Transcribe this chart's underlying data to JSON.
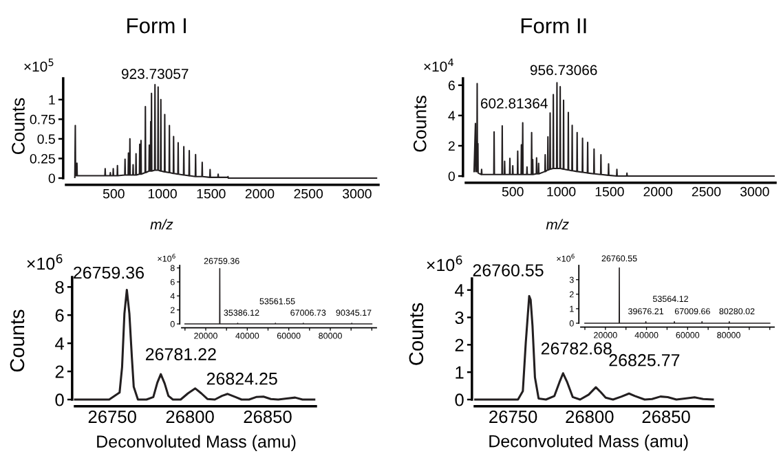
{
  "chart_data": [
    {
      "type": "line",
      "title": "Form I",
      "xlabel": "m/z",
      "ylabel": "Counts",
      "xlim": [
        10,
        3220
      ],
      "ylim": [
        0,
        1.27
      ],
      "xticks": [
        500,
        1000,
        1500,
        2000,
        2500,
        3000
      ],
      "yticks": [
        0,
        0.25,
        0.5,
        0.75,
        1
      ],
      "annotations": [
        "×10$^{5}$",
        {
          "text": "923.73057",
          "x": 923.73,
          "y": 1.19
        }
      ],
      "x": [
        100,
        105,
        108,
        119,
        122,
        125,
        409,
        412,
        415,
        462,
        465,
        468,
        492,
        495,
        498,
        535,
        538,
        541,
        613,
        616,
        619,
        648,
        651,
        654,
        663,
        666,
        669,
        696,
        699,
        702,
        726,
        729,
        732,
        764,
        767,
        770,
        777,
        780,
        783,
        822,
        825,
        828,
        862,
        865,
        868,
        877,
        880,
        883,
        885,
        888,
        891,
        920,
        923.73,
        927,
        953,
        956,
        959,
        981,
        984,
        987,
        1021,
        1024,
        1027,
        1069,
        1072,
        1075,
        1112,
        1115,
        1118,
        1159,
        1162,
        1165,
        1217,
        1220,
        1223,
        1273,
        1276,
        1279,
        1338,
        1341,
        1344,
        1406,
        1409,
        1412,
        1487,
        1490,
        1493,
        1570,
        1573,
        1576,
        1671,
        1674,
        1677,
        3200
      ],
      "series": [
        {
          "color": "#231f20",
          "values": [
            0.01,
            0.67,
            0.03,
            0.03,
            0.19,
            0.03,
            0.03,
            0.12,
            0.03,
            0.03,
            0.07,
            0.03,
            0.03,
            0.12,
            0.03,
            0.03,
            0.16,
            0.03,
            0.04,
            0.24,
            0.04,
            0.04,
            0.32,
            0.04,
            0.04,
            0.5,
            0.04,
            0.04,
            0.17,
            0.04,
            0.04,
            0.31,
            0.04,
            0.05,
            0.43,
            0.05,
            0.05,
            0.48,
            0.05,
            0.07,
            0.91,
            0.07,
            0.09,
            0.42,
            0.09,
            0.09,
            0.72,
            0.09,
            0.09,
            1.08,
            0.09,
            0.1,
            1.19,
            0.1,
            0.1,
            1.16,
            0.1,
            0.09,
            1.0,
            0.09,
            0.08,
            0.81,
            0.08,
            0.07,
            0.67,
            0.07,
            0.06,
            0.53,
            0.06,
            0.05,
            0.45,
            0.05,
            0.04,
            0.4,
            0.04,
            0.03,
            0.35,
            0.03,
            0.02,
            0.3,
            0.02,
            0.02,
            0.2,
            0.02,
            0.01,
            0.11,
            0.01,
            0.01,
            0.05,
            0.01,
            0.01,
            0.02,
            0,
            0
          ]
        }
      ]
    },
    {
      "type": "line",
      "title": "Form II",
      "xlabel": "m/z",
      "ylabel": "Counts",
      "xlim": [
        15,
        3215
      ],
      "ylim": [
        0,
        6.45
      ],
      "xticks": [
        500,
        1000,
        1500,
        2000,
        2500,
        3000
      ],
      "yticks": [
        0,
        2,
        4,
        6
      ],
      "annotations": [
        "×10$^{4}$",
        {
          "text": "956.73066",
          "x": 956.73,
          "y": 6.16
        },
        {
          "text": "602.81364",
          "x": 602.81,
          "y": 3.52
        }
      ],
      "x": [
        100,
        114,
        117,
        129,
        132,
        135,
        138,
        140,
        142,
        175,
        178,
        181,
        304,
        307,
        310,
        388,
        391,
        394,
        413,
        416,
        419,
        467,
        470,
        473,
        497,
        500,
        503,
        548,
        551,
        554,
        586,
        589,
        592,
        599,
        602.81,
        606,
        644,
        647,
        650,
        692,
        695,
        698,
        703,
        706,
        709,
        743,
        746,
        749,
        764,
        767,
        770,
        832,
        835,
        838,
        860,
        863,
        866,
        883,
        886,
        889,
        916,
        919,
        922,
        953,
        956.73,
        960,
        987,
        990,
        993,
        1022,
        1025,
        1028,
        1071,
        1074,
        1077,
        1111,
        1114,
        1117,
        1162,
        1165,
        1168,
        1218,
        1221,
        1224,
        1271,
        1274,
        1277,
        1337,
        1340,
        1343,
        1408,
        1411,
        1414,
        1487,
        1490,
        1493,
        1573,
        1576,
        1579,
        1677,
        1680,
        1683,
        3200
      ],
      "series": [
        {
          "color": "#231f20",
          "values": [
            0.3,
            3.47,
            0.3,
            0.3,
            6.11,
            0.3,
            0.3,
            2.14,
            0.2,
            0.1,
            0.44,
            0.1,
            0.1,
            2.92,
            0.1,
            0.1,
            3.31,
            0.1,
            0.1,
            0.97,
            0.1,
            0.1,
            1.17,
            0.1,
            0.1,
            0.68,
            0.1,
            0.1,
            1.65,
            0.1,
            0.1,
            2.06,
            0.1,
            0.1,
            3.52,
            0.1,
            0.1,
            0.6,
            0.1,
            0.1,
            2.87,
            0.1,
            0.1,
            1.09,
            0.1,
            0.15,
            1.2,
            0.15,
            0.15,
            0.84,
            0.15,
            0.3,
            1.41,
            0.3,
            0.4,
            2.59,
            0.4,
            0.45,
            4.17,
            0.45,
            0.5,
            5.38,
            0.5,
            0.5,
            6.16,
            0.5,
            0.5,
            5.9,
            0.5,
            0.45,
            5.01,
            0.45,
            0.4,
            4.2,
            0.4,
            0.35,
            3.35,
            0.35,
            0.3,
            2.87,
            0.3,
            0.25,
            2.5,
            0.25,
            0.2,
            2.22,
            0.2,
            0.15,
            1.78,
            0.15,
            0.1,
            1.41,
            0.1,
            0.05,
            0.81,
            0.05,
            0,
            0.44,
            0,
            0,
            0.19,
            0,
            0
          ]
        }
      ]
    },
    {
      "type": "line",
      "xlabel": "Deconvoluted Mass (amu)",
      "ylabel": "Counts",
      "xlim": [
        26726,
        26881
      ],
      "ylim": [
        0,
        8.7
      ],
      "xticks": [
        26750,
        26800,
        26850
      ],
      "yticks": [
        0,
        2,
        4,
        6,
        8
      ],
      "annotations": [
        "×10$^{6}$",
        {
          "text": "26759.36",
          "x": 26759.36,
          "y": 7.8
        },
        {
          "text": "26781.22",
          "x": 26781.22,
          "y": 1.8
        },
        {
          "text": "26824.25",
          "x": 26824.25,
          "y": 0.4
        }
      ],
      "x": [
        26726,
        26748,
        26754.7,
        26756.3,
        26757.8,
        26759.36,
        26761,
        26762.6,
        26763.8,
        26766.5,
        26772,
        26776.4,
        26779,
        26781.22,
        26783.7,
        26786.1,
        26789,
        26794,
        26798.7,
        26803.4,
        26807.3,
        26811.2,
        26816,
        26820.6,
        26824.25,
        26829.3,
        26833.2,
        26838,
        26842.6,
        26847.3,
        26852,
        26856.8,
        26862.2,
        26867.7,
        26872.4,
        26880
      ],
      "series": [
        {
          "color": "#231f20",
          "values": [
            0,
            0,
            0.5,
            2.3,
            6.1,
            7.8,
            6.1,
            3.0,
            0.9,
            0,
            0,
            0.18,
            1.2,
            1.8,
            1.14,
            0.26,
            0,
            0,
            0.44,
            0.79,
            0.44,
            0.04,
            0,
            0.26,
            0.4,
            0.18,
            0,
            0,
            0.18,
            0.21,
            0.04,
            0,
            0.07,
            0.14,
            0,
            0
          ]
        }
      ]
    },
    {
      "type": "line",
      "xlim": [
        8400,
        102200
      ],
      "ylim": [
        0,
        8.35
      ],
      "xticks": [
        {
          "value": 10000,
          "label": null
        },
        20000,
        {
          "value": 30000,
          "label": null
        },
        40000,
        {
          "value": 50000,
          "label": null
        },
        60000,
        {
          "value": 70000,
          "label": null
        },
        80000,
        {
          "value": 90000,
          "label": null
        },
        {
          "value": 100000,
          "label": null
        }
      ],
      "yticks": [
        0,
        2,
        4,
        6,
        8
      ],
      "annotations": [
        "×10$^{6}$",
        {
          "text": "26759.36",
          "x": 26759.36,
          "y": 7.9
        },
        {
          "text": "35386.12",
          "x": 35386.12,
          "y": 0.1
        },
        {
          "text": "53561.55",
          "x": 53561.55,
          "y": 0.1
        },
        {
          "text": "67006.73",
          "x": 67006.73,
          "y": 0.1
        },
        {
          "text": "90345.17",
          "x": 90345.17,
          "y": 0.1
        }
      ],
      "x": [
        10000,
        26700,
        26759.36,
        26820,
        35300,
        35386.12,
        35470,
        53480,
        53561.55,
        53640,
        66930,
        67006.73,
        67080,
        90270,
        90345.17,
        90420,
        100000
      ],
      "series": [
        {
          "color": "#231f20",
          "values": [
            0,
            0,
            7.9,
            0,
            0,
            0.1,
            0,
            0,
            0.1,
            0,
            0,
            0.1,
            0,
            0,
            0.1,
            0,
            0
          ]
        }
      ]
    },
    {
      "type": "line",
      "xlabel": "Deconvoluted Mass (amu)",
      "ylabel": "Counts",
      "xlim": [
        26725,
        26881
      ],
      "ylim": [
        0,
        4.42
      ],
      "xticks": [
        26750,
        26800,
        26850
      ],
      "yticks": [
        0,
        1,
        2,
        3,
        4
      ],
      "annotations": [
        "×10$^{6}$",
        {
          "text": "26760.55",
          "x": 26760.55,
          "y": 3.78
        },
        {
          "text": "26782.68",
          "x": 26782.68,
          "y": 0.96
        },
        {
          "text": "26825.77",
          "x": 26825.77,
          "y": 0.22
        }
      ],
      "x": [
        26725.3,
        26753.2,
        26756.4,
        26758.3,
        26760.55,
        26761.5,
        26762.7,
        26764.3,
        26766.7,
        26771.5,
        26777,
        26780.3,
        26782.68,
        26785.4,
        26789,
        26793.8,
        26799.4,
        26804.1,
        26807.3,
        26810.5,
        26815.3,
        26820.9,
        26825.77,
        26829.6,
        26836,
        26840.8,
        26846.3,
        26851.1,
        26856.7,
        26862.3,
        26868.6,
        26874.2,
        26880.5
      ],
      "series": [
        {
          "color": "#231f20",
          "values": [
            0,
            0,
            0.31,
            2.07,
            3.78,
            3.64,
            2.7,
            0.81,
            0.04,
            0,
            0.13,
            0.63,
            0.96,
            0.63,
            0.09,
            0,
            0.18,
            0.45,
            0.27,
            0.07,
            0,
            0.11,
            0.22,
            0.13,
            0,
            0.02,
            0.11,
            0.09,
            0,
            0.04,
            0.08,
            0.02,
            0
          ]
        }
      ]
    },
    {
      "type": "line",
      "xlim": [
        8000,
        102100
      ],
      "ylim": [
        0,
        3.98
      ],
      "xticks": [
        {
          "value": 10000,
          "label": null
        },
        20000,
        {
          "value": 30000,
          "label": null
        },
        40000,
        {
          "value": 50000,
          "label": null
        },
        60000,
        {
          "value": 70000,
          "label": null
        },
        80000,
        {
          "value": 90000,
          "label": null
        },
        {
          "value": 100000,
          "label": null
        }
      ],
      "yticks": [
        0,
        1,
        2,
        3
      ],
      "annotations": [
        "×10$^{6}$",
        {
          "text": "26760.55",
          "x": 26760.55,
          "y": 3.81
        },
        {
          "text": "39676.21",
          "x": 39676.21,
          "y": 0.1
        },
        {
          "text": "53564.12",
          "x": 53564.12,
          "y": 0.1
        },
        {
          "text": "67009.66",
          "x": 67009.66,
          "y": 0.1
        },
        {
          "text": "80280.02",
          "x": 80280.02,
          "y": 0.1
        }
      ],
      "x": [
        10000,
        26700,
        26760.55,
        26820,
        39600,
        39676.21,
        39750,
        53490,
        53564.12,
        53640,
        66930,
        67009.66,
        67080,
        80200,
        80280.02,
        80360,
        100000
      ],
      "series": [
        {
          "color": "#231f20",
          "values": [
            0,
            0,
            3.81,
            0,
            0,
            0.1,
            0,
            0,
            0.1,
            0,
            0,
            0.1,
            0,
            0,
            0.1,
            0,
            0
          ]
        }
      ]
    }
  ]
}
